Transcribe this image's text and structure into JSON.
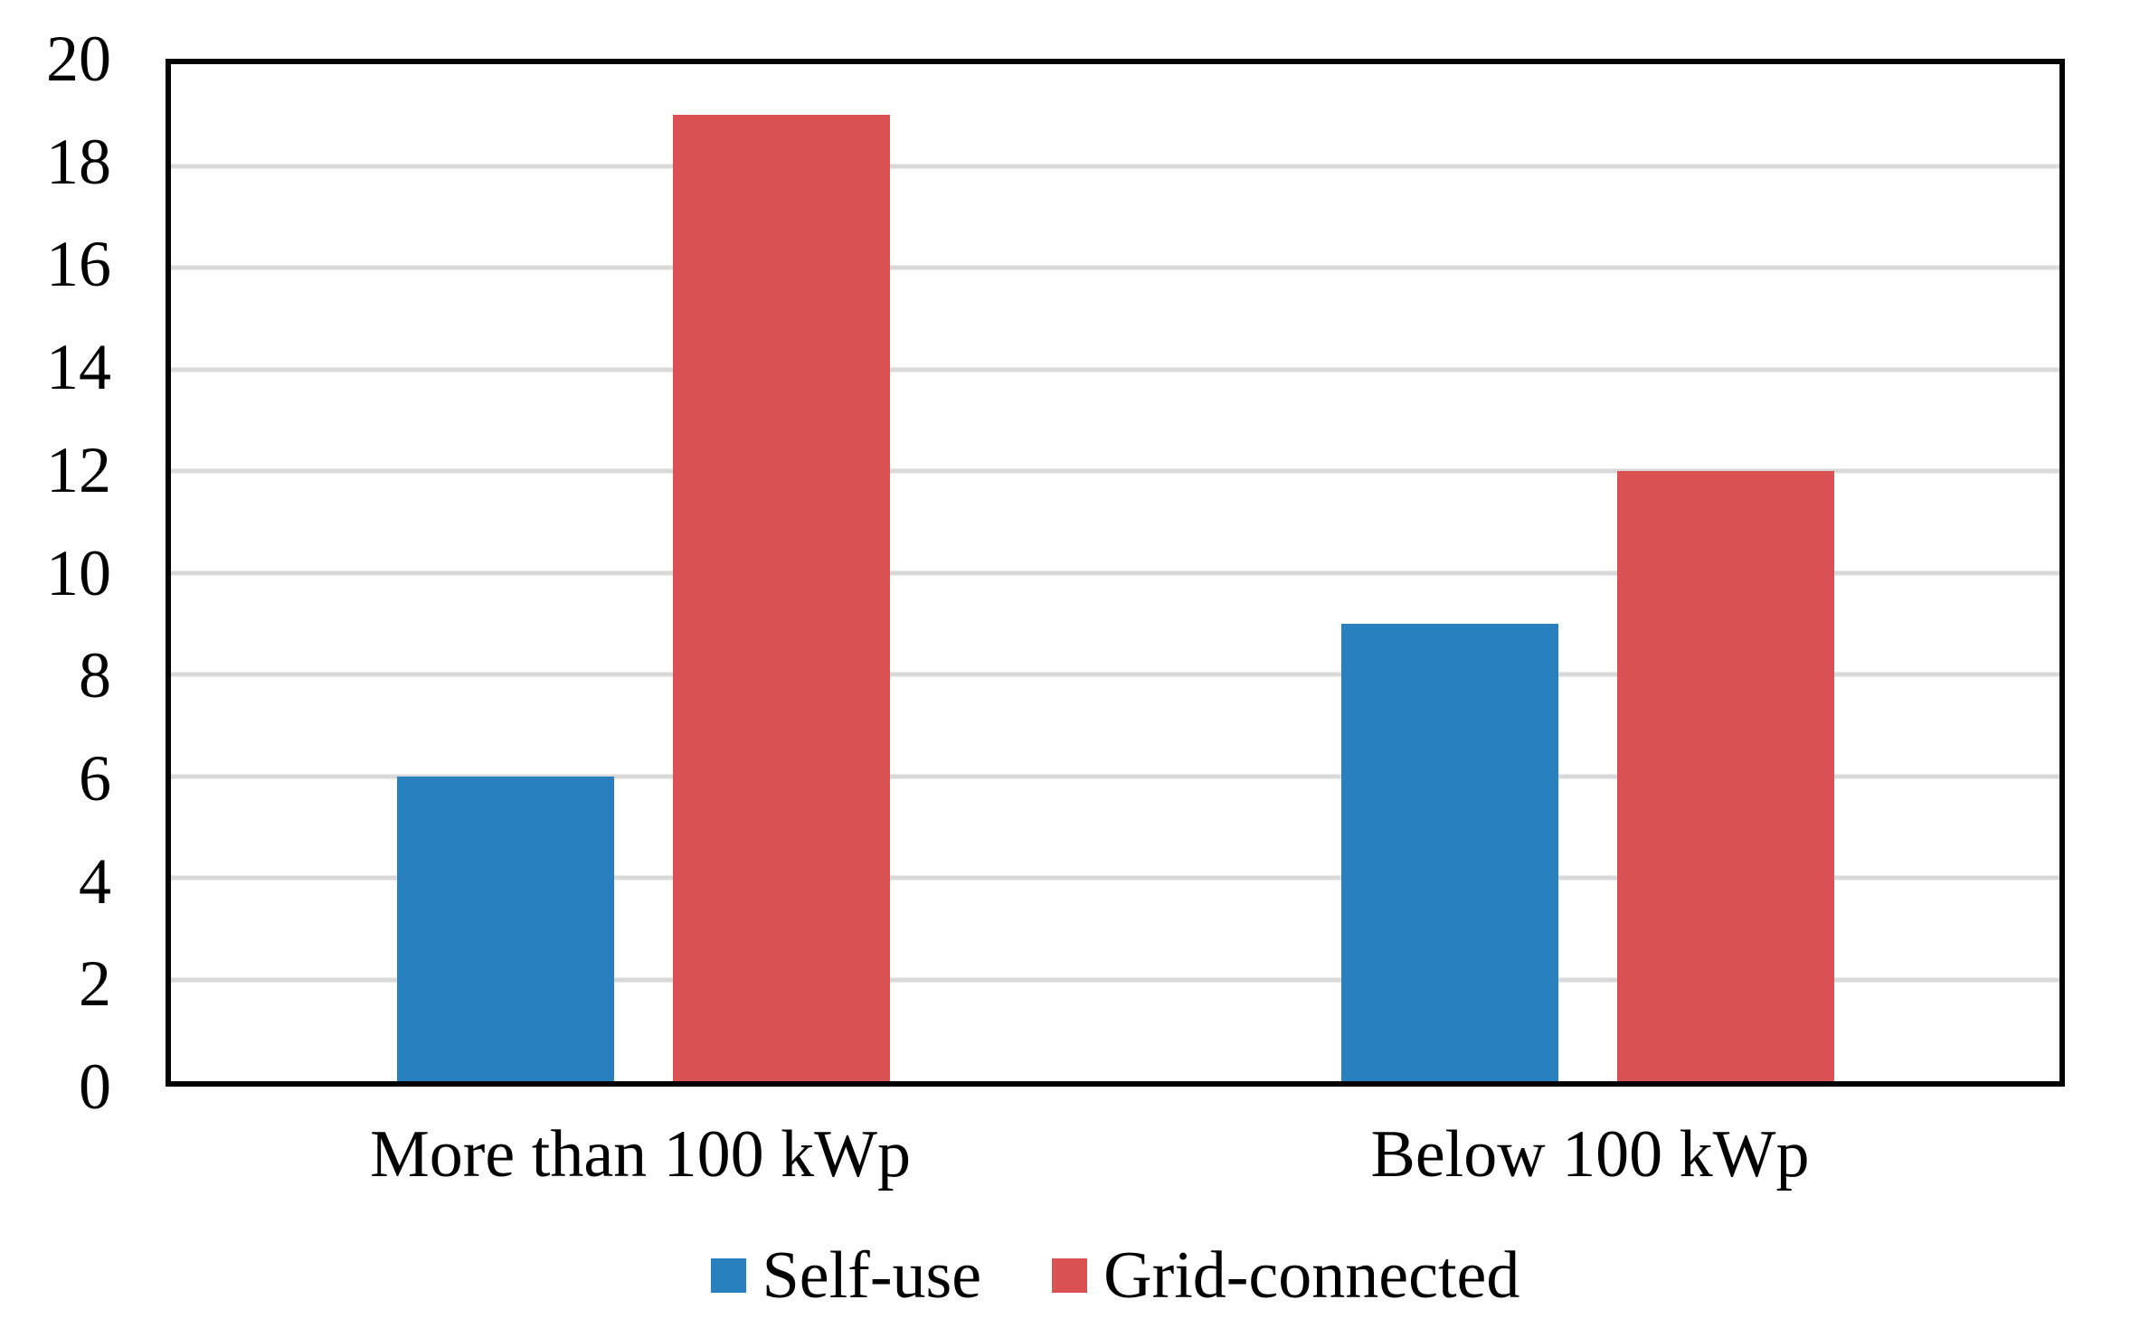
{
  "chart_data": {
    "type": "bar",
    "title": "",
    "categories": [
      "More than 100 kWp",
      "Below 100 kWp"
    ],
    "series": [
      {
        "name": "Self-use",
        "color": "#2980BE",
        "values": [
          6,
          9
        ]
      },
      {
        "name": "Grid-connected",
        "color": "#D95152",
        "values": [
          19,
          12
        ]
      }
    ],
    "ylim": [
      0,
      20
    ],
    "ytick_step": 2,
    "yticks": [
      0,
      2,
      4,
      6,
      8,
      10,
      12,
      14,
      16,
      18,
      20
    ],
    "grid": "horizontal",
    "gridline_color": "#D9D9D9",
    "axis_color": "#000000",
    "plot_background": "#FFFFFF",
    "legend_position": "bottom"
  }
}
